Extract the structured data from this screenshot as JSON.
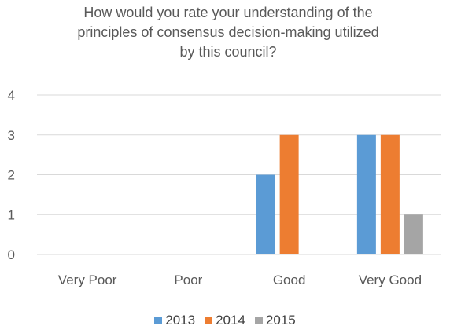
{
  "chart_data": {
    "type": "bar",
    "title": "How would you rate your understanding of the\nprinciples of consensus decision-making utilized\nby this council?",
    "xlabel": "",
    "ylabel": "",
    "categories": [
      "Very Poor",
      "Poor",
      "Good",
      "Very Good"
    ],
    "series": [
      {
        "name": "2013",
        "color": "#5B9BD5",
        "values": [
          0,
          0,
          2,
          3
        ]
      },
      {
        "name": "2014",
        "color": "#ED7D31",
        "values": [
          0,
          0,
          3,
          3
        ]
      },
      {
        "name": "2015",
        "color": "#A5A5A5",
        "values": [
          0,
          0,
          0,
          1
        ]
      }
    ],
    "ylim": [
      0,
      4
    ],
    "yticks": [
      "0",
      "1",
      "2",
      "3",
      "4"
    ],
    "grid": true,
    "legend_position": "bottom"
  }
}
